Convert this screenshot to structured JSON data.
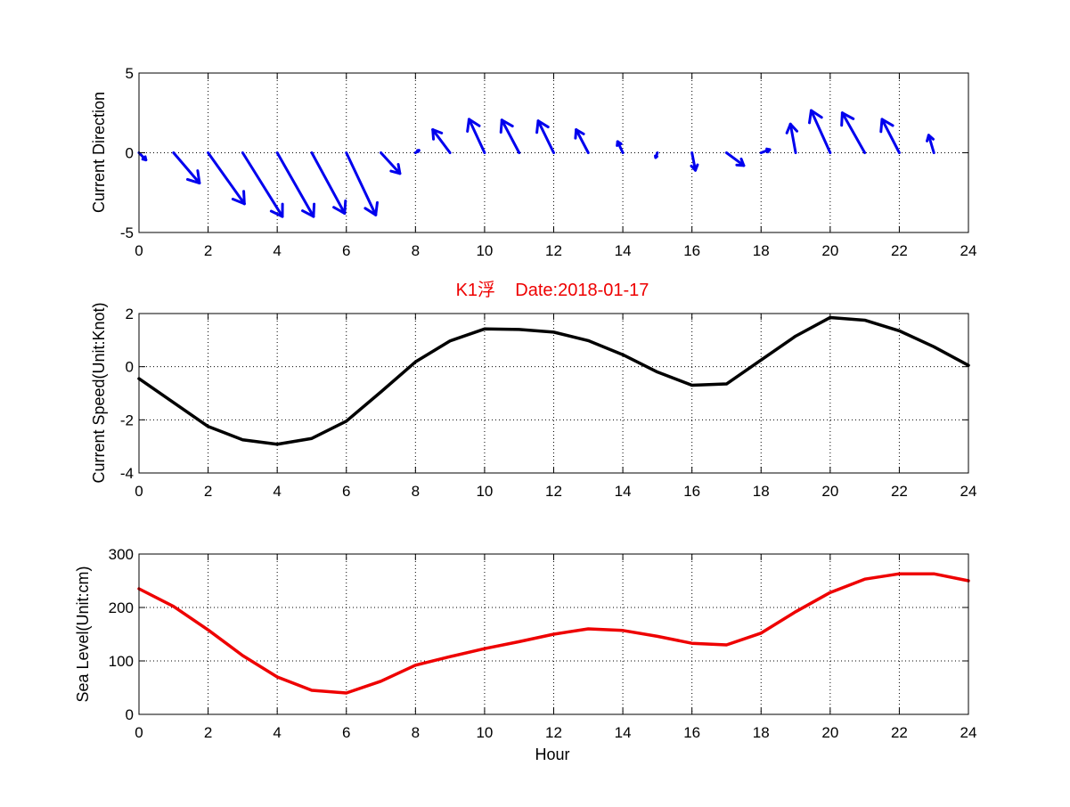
{
  "figure": {
    "title": "K1浮    Date:2018-01-17"
  },
  "colors": {
    "arrows": "#0000ee",
    "speed_line": "#000000",
    "sea_level_line": "#ee0000",
    "title": "#ee0000"
  },
  "chart_data": [
    {
      "type": "quiver",
      "ylabel": "Current Direction",
      "xlabel": "",
      "xlim": [
        0,
        24
      ],
      "ylim": [
        -5,
        5
      ],
      "xticks": [
        0,
        2,
        4,
        6,
        8,
        10,
        12,
        14,
        16,
        18,
        20,
        22,
        24
      ],
      "yticks": [
        -5,
        0,
        5
      ],
      "grid": true,
      "x": [
        0,
        1,
        2,
        3,
        4,
        5,
        6,
        7,
        8,
        9,
        10,
        11,
        12,
        13,
        14,
        15,
        16,
        17,
        18,
        19,
        20,
        21,
        22,
        23
      ],
      "u": [
        0.2,
        0.75,
        1.05,
        1.15,
        1.05,
        0.95,
        0.85,
        0.55,
        0.1,
        -0.5,
        -0.45,
        -0.5,
        -0.45,
        -0.35,
        -0.15,
        -0.05,
        0.1,
        0.5,
        0.25,
        -0.15,
        -0.55,
        -0.65,
        -0.5,
        -0.15
      ],
      "v": [
        -0.45,
        -1.9,
        -3.2,
        -4.0,
        -4.0,
        -3.8,
        -3.9,
        -1.3,
        0.15,
        1.45,
        2.1,
        2.05,
        2.0,
        1.45,
        0.7,
        -0.3,
        -1.1,
        -0.8,
        0.2,
        1.8,
        2.65,
        2.5,
        2.1,
        1.1
      ]
    },
    {
      "type": "line",
      "ylabel": "Current Speed(Unit:Knot)",
      "xlabel": "",
      "xlim": [
        0,
        24
      ],
      "ylim": [
        -4,
        2
      ],
      "xticks": [
        0,
        2,
        4,
        6,
        8,
        10,
        12,
        14,
        16,
        18,
        20,
        22,
        24
      ],
      "yticks": [
        -4,
        -2,
        0,
        2
      ],
      "grid": true,
      "x": [
        0,
        1,
        2,
        3,
        4,
        5,
        6,
        7,
        8,
        9,
        10,
        11,
        12,
        13,
        14,
        15,
        16,
        17,
        18,
        19,
        20,
        21,
        22,
        23,
        24
      ],
      "series": [
        {
          "values": [
            -0.45,
            -1.35,
            -2.25,
            -2.75,
            -2.92,
            -2.7,
            -2.05,
            -0.95,
            0.18,
            0.97,
            1.42,
            1.4,
            1.3,
            0.98,
            0.45,
            -0.2,
            -0.7,
            -0.65,
            0.25,
            1.15,
            1.85,
            1.75,
            1.35,
            0.75,
            0.05
          ]
        }
      ]
    },
    {
      "type": "line",
      "ylabel": "Sea Level(Unit:cm)",
      "xlabel": "Hour",
      "xlim": [
        0,
        24
      ],
      "ylim": [
        0,
        300
      ],
      "xticks": [
        0,
        2,
        4,
        6,
        8,
        10,
        12,
        14,
        16,
        18,
        20,
        22,
        24
      ],
      "yticks": [
        0,
        100,
        200,
        300
      ],
      "grid": true,
      "x": [
        0,
        1,
        2,
        3,
        4,
        5,
        6,
        7,
        8,
        9,
        10,
        11,
        12,
        13,
        14,
        15,
        16,
        17,
        18,
        19,
        20,
        21,
        22,
        23,
        24
      ],
      "series": [
        {
          "values": [
            235,
            202,
            158,
            110,
            70,
            45,
            40,
            62,
            92,
            108,
            123,
            136,
            150,
            160,
            157,
            146,
            133,
            130,
            152,
            192,
            228,
            253,
            263,
            263,
            250
          ]
        }
      ]
    }
  ]
}
